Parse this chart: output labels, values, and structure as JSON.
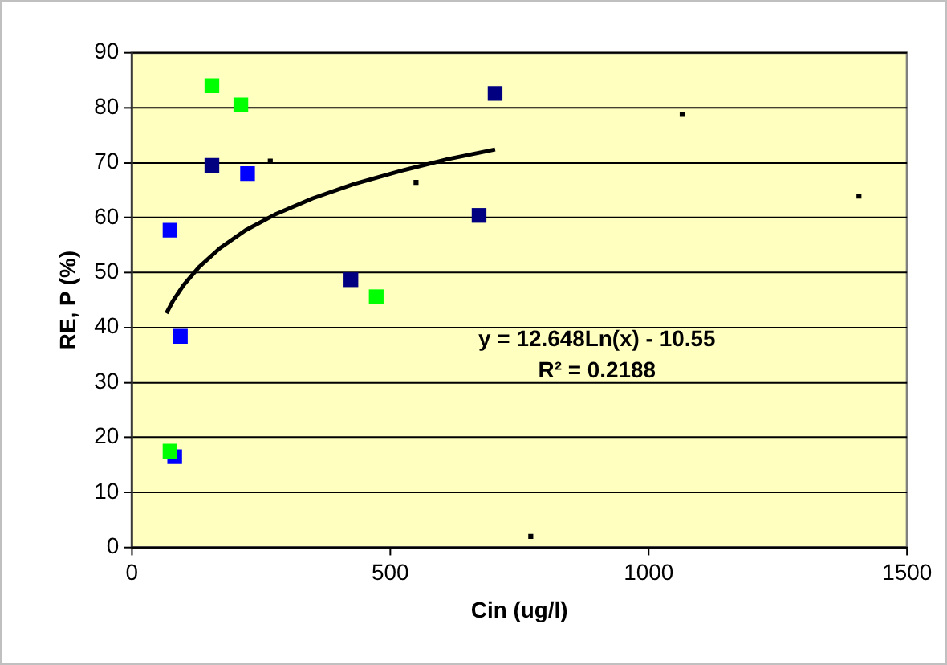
{
  "chart_data": {
    "type": "scatter",
    "xlabel": "Cin (ug/l)",
    "ylabel": "RE, P (%)",
    "annotations": [
      "y = 12.648Ln(x) - 10.55",
      "R² = 0.2188"
    ],
    "xlim": [
      0,
      1500
    ],
    "xticks": [
      0,
      500,
      1000,
      1500
    ],
    "ylim": [
      0,
      90
    ],
    "yticks": [
      0,
      10,
      20,
      30,
      40,
      50,
      60,
      70,
      80,
      90
    ],
    "grid": "y",
    "legend": false,
    "marker": "square",
    "series": [
      {
        "color": "#0000ff",
        "x": [
          83,
          74,
          94,
          224
        ],
        "values": [
          16.5,
          57.7,
          38.4,
          68
        ]
      },
      {
        "color": "#00ff00",
        "x": [
          74,
          155,
          211,
          473
        ],
        "values": [
          17.5,
          84,
          80.5,
          45.6
        ]
      },
      {
        "color": "#000080",
        "x": [
          155,
          424,
          672,
          703
        ],
        "values": [
          69.5,
          48.7,
          60.4,
          82.6
        ]
      },
      {
        "color": "#000000",
        "marker": "square",
        "x": [
          268,
          550,
          1065,
          1407,
          772
        ],
        "values": [
          70.3,
          66.4,
          78.8,
          63.9,
          2
        ]
      },
      {
        "type": "line",
        "color": "#000000",
        "marker": "none",
        "x": [
          67,
          80,
          100,
          130,
          170,
          220,
          280,
          350,
          430,
          520,
          610,
          703
        ],
        "values": [
          42.6,
          44.9,
          47.7,
          51,
          54.4,
          57.7,
          60.7,
          63.5,
          66.1,
          68.5,
          70.6,
          72.4
        ]
      }
    ]
  }
}
